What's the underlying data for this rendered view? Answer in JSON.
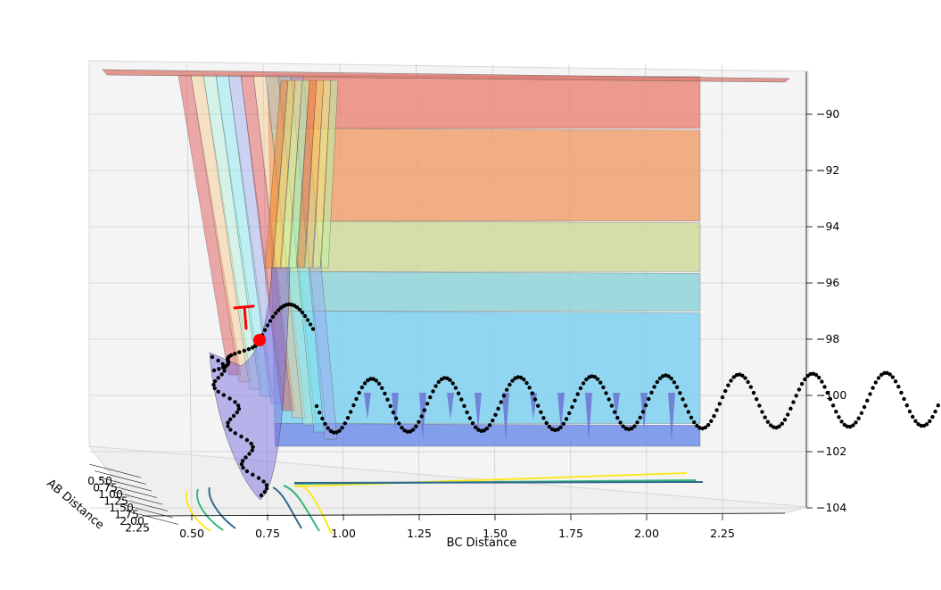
{
  "chart_data": {
    "type": "surface3d",
    "title": "",
    "xlabel": "BC Distance",
    "ylabel": "AB Distance",
    "zlabel": "",
    "x_ticks": [
      "0.50",
      "0.75",
      "1.00",
      "1.25",
      "1.50",
      "1.75",
      "2.00",
      "2.25"
    ],
    "y_ticks": [
      "0.50",
      "0.75",
      "1.00",
      "1.25",
      "1.50",
      "1.75",
      "2.00",
      "2.25"
    ],
    "z_ticks": [
      "-90",
      "-92",
      "-94",
      "-96",
      "-98",
      "-100",
      "-102",
      "-104"
    ],
    "xlim": [
      0.4,
      2.45
    ],
    "zlim": [
      -104.2,
      -88.6
    ],
    "grid": true,
    "surface": {
      "description_colormap": "jet",
      "bands": [
        {
          "z_top": -88.6,
          "z_bottom": -90.5,
          "color": "#e98a7a"
        },
        {
          "z_top": -90.5,
          "z_bottom": -93.8,
          "color": "#f0a070"
        },
        {
          "z_top": -93.8,
          "z_bottom": -95.6,
          "color": "#cfd89a"
        },
        {
          "z_top": -95.6,
          "z_bottom": -97.0,
          "color": "#8fd4d8"
        },
        {
          "z_top": -97.0,
          "z_bottom": -101.0,
          "color": "#7fd0f0"
        },
        {
          "z_top": -101.0,
          "z_bottom": -104.0,
          "color": "#6f8ee8"
        }
      ]
    },
    "contour_colors": [
      "#fde725",
      "#35b779",
      "#31688e"
    ],
    "trajectory": {
      "name": "",
      "color": "#000000",
      "description": "oscillating reaction trajectory from the AB well through the transition state into the BC product valley"
    },
    "annotation": {
      "text": "T",
      "color": "#ff0000",
      "marker_color": "#ff0000"
    },
    "transition_state": {
      "x": 0.74,
      "z": -98.0
    }
  }
}
